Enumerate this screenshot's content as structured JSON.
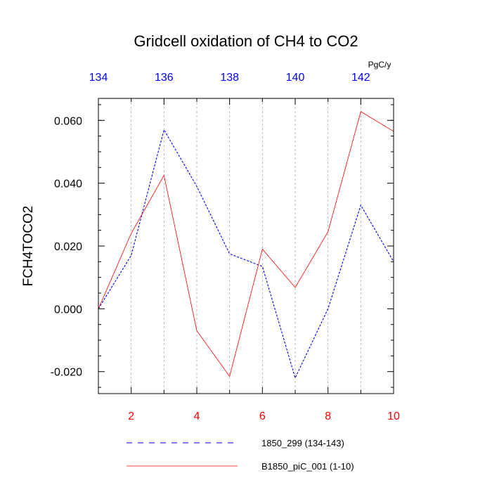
{
  "chart_data": {
    "type": "line",
    "title": "Gridcell oxidation of CH4 to CO2",
    "ylabel": "FCH4TOCO2",
    "top_axis_units": "PgC/y",
    "ylim": [
      -0.027,
      0.067
    ],
    "y_ticks": [
      -0.02,
      0.0,
      0.02,
      0.04,
      0.06
    ],
    "y_tick_labels": [
      "-0.020",
      "0.000",
      "0.020",
      "0.040",
      "0.060"
    ],
    "bottom_axis": {
      "range": [
        1,
        10
      ],
      "ticks": [
        2,
        4,
        6,
        8,
        10
      ],
      "color": "#ff0000"
    },
    "top_axis": {
      "range": [
        134,
        143
      ],
      "ticks": [
        134,
        136,
        138,
        140,
        142
      ],
      "color": "#0000ff"
    },
    "grid": "vertical dashed at bottom-axis integer positions",
    "legend_placement": "bottom",
    "series": [
      {
        "name": "1850_299 (134-143)",
        "color": "#0000ff",
        "dash": "dashed",
        "axis": "top",
        "x": [
          134,
          135,
          136,
          137,
          138,
          139,
          140,
          141,
          142,
          143
        ],
        "values": [
          0.0,
          0.017,
          0.057,
          0.039,
          0.0175,
          0.0135,
          -0.022,
          0.0,
          0.033,
          0.015
        ]
      },
      {
        "name": "B1850_piC_001 (1-10)",
        "color": "#ff0000",
        "dash": "solid",
        "axis": "bottom",
        "x": [
          1,
          2,
          3,
          4,
          5,
          6,
          7,
          8,
          9,
          10
        ],
        "values": [
          0.0,
          0.024,
          0.0425,
          -0.007,
          -0.0215,
          0.019,
          0.0068,
          0.0245,
          0.0628,
          0.0565
        ]
      }
    ]
  }
}
